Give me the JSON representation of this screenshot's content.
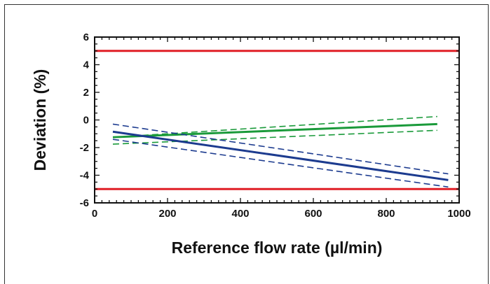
{
  "chart_data": {
    "type": "line",
    "xlabel": "Reference flow rate (µl/min)",
    "ylabel": "Deviation (%)",
    "xlim": [
      0,
      1000
    ],
    "ylim": [
      -6,
      6
    ],
    "x_ticks": [
      0,
      200,
      400,
      600,
      800,
      1000
    ],
    "y_ticks": [
      -6,
      -4,
      -2,
      0,
      2,
      4,
      6
    ],
    "grid": false,
    "legend": "none",
    "series": [
      {
        "style": "solid",
        "color": "#e01f26",
        "x": [
          0,
          1000
        ],
        "y": [
          5,
          5
        ]
      },
      {
        "style": "solid",
        "color": "#e01f26",
        "x": [
          0,
          1000
        ],
        "y": [
          -5,
          -5
        ]
      },
      {
        "style": "solid",
        "color": "#1a9a3a",
        "x": [
          50,
          940
        ],
        "y": [
          -1.25,
          -0.3
        ]
      },
      {
        "style": "dashed",
        "color": "#1a9a3a",
        "x": [
          50,
          940
        ],
        "y": [
          -1.25,
          0.25
        ]
      },
      {
        "style": "dashed",
        "color": "#1a9a3a",
        "x": [
          50,
          940
        ],
        "y": [
          -1.75,
          -0.75
        ]
      },
      {
        "style": "solid",
        "color": "#1c3b8f",
        "x": [
          50,
          970
        ],
        "y": [
          -0.85,
          -4.35
        ]
      },
      {
        "style": "dashed",
        "color": "#1c3b8f",
        "x": [
          50,
          970
        ],
        "y": [
          -0.3,
          -3.9
        ]
      },
      {
        "style": "dashed",
        "color": "#1c3b8f",
        "x": [
          50,
          970
        ],
        "y": [
          -1.4,
          -4.85
        ]
      }
    ]
  }
}
